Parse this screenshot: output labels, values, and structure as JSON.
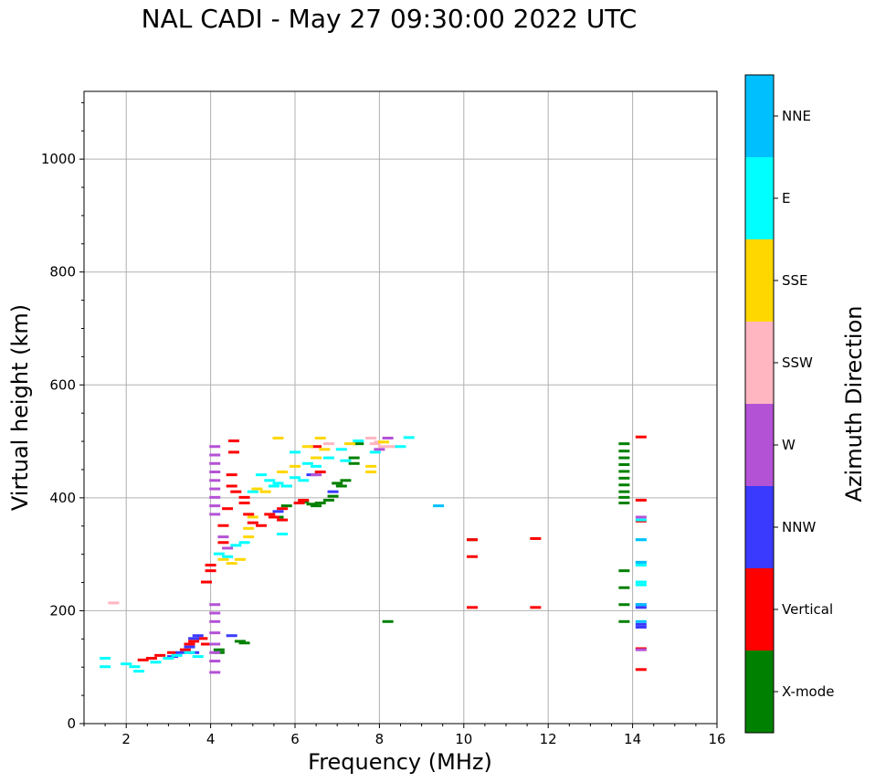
{
  "chart_data": {
    "type": "scatter",
    "title": "NAL CADI - May 27 09:30:00 2022 UTC",
    "xlabel": "Frequency (MHz)",
    "ylabel": "Virtual height (km)",
    "xlim": [
      1,
      16
    ],
    "ylim": [
      0,
      1120
    ],
    "xticks": [
      2,
      4,
      6,
      8,
      10,
      12,
      14,
      16
    ],
    "yticks": [
      0,
      200,
      400,
      600,
      800,
      1000
    ],
    "grid": true,
    "colorbar": {
      "label": "Azimuth Direction",
      "categories": [
        {
          "name": "X-mode",
          "color": "#008000"
        },
        {
          "name": "Vertical",
          "color": "#ff0000"
        },
        {
          "name": "NNW",
          "color": "#3a3aff"
        },
        {
          "name": "W",
          "color": "#b452d6"
        },
        {
          "name": "SSW",
          "color": "#ffb6c1"
        },
        {
          "name": "SSE",
          "color": "#ffd700"
        },
        {
          "name": "E",
          "color": "#00ffff"
        },
        {
          "name": "NNE",
          "color": "#00bfff"
        }
      ]
    },
    "series": [
      {
        "name": "X-mode",
        "points": [
          [
            4.2,
            130
          ],
          [
            4.2,
            125
          ],
          [
            4.7,
            145
          ],
          [
            4.8,
            142
          ],
          [
            5.6,
            365
          ],
          [
            5.8,
            385
          ],
          [
            6.2,
            392
          ],
          [
            6.4,
            388
          ],
          [
            6.5,
            385
          ],
          [
            6.6,
            390
          ],
          [
            6.8,
            395
          ],
          [
            7.0,
            425
          ],
          [
            7.2,
            430
          ],
          [
            7.4,
            470
          ],
          [
            7.4,
            460
          ],
          [
            7.5,
            495
          ],
          [
            7.1,
            420
          ],
          [
            6.9,
            402
          ],
          [
            8.2,
            180
          ],
          [
            10.2,
            325
          ],
          [
            13.8,
            495
          ],
          [
            13.8,
            482
          ],
          [
            13.8,
            470
          ],
          [
            13.8,
            458
          ],
          [
            13.8,
            446
          ],
          [
            13.8,
            434
          ],
          [
            13.8,
            422
          ],
          [
            13.8,
            410
          ],
          [
            13.8,
            400
          ],
          [
            13.8,
            390
          ],
          [
            13.8,
            270
          ],
          [
            13.8,
            240
          ],
          [
            13.8,
            210
          ],
          [
            13.8,
            180
          ]
        ]
      },
      {
        "name": "Vertical",
        "points": [
          [
            2.4,
            112
          ],
          [
            2.6,
            115
          ],
          [
            2.8,
            120
          ],
          [
            3.1,
            125
          ],
          [
            3.4,
            130
          ],
          [
            3.5,
            140
          ],
          [
            3.6,
            145
          ],
          [
            3.8,
            150
          ],
          [
            3.9,
            140
          ],
          [
            3.9,
            250
          ],
          [
            4.0,
            270
          ],
          [
            4.0,
            280
          ],
          [
            4.3,
            320
          ],
          [
            4.3,
            350
          ],
          [
            4.4,
            380
          ],
          [
            4.5,
            420
          ],
          [
            4.5,
            440
          ],
          [
            4.55,
            480
          ],
          [
            4.55,
            500
          ],
          [
            4.6,
            410
          ],
          [
            4.8,
            390
          ],
          [
            4.8,
            400
          ],
          [
            4.9,
            370
          ],
          [
            5.0,
            355
          ],
          [
            5.2,
            350
          ],
          [
            5.4,
            370
          ],
          [
            5.5,
            365
          ],
          [
            5.7,
            360
          ],
          [
            5.7,
            380
          ],
          [
            5.8,
            420
          ],
          [
            6.1,
            390
          ],
          [
            6.2,
            395
          ],
          [
            6.5,
            490
          ],
          [
            6.6,
            445
          ],
          [
            10.2,
            295
          ],
          [
            10.2,
            205
          ],
          [
            10.2,
            325
          ],
          [
            11.7,
            327
          ],
          [
            11.7,
            205
          ],
          [
            14.2,
            507
          ],
          [
            14.2,
            395
          ],
          [
            14.2,
            358
          ],
          [
            14.2,
            132
          ],
          [
            14.2,
            95
          ]
        ]
      },
      {
        "name": "NNW",
        "points": [
          [
            3.1,
            118
          ],
          [
            3.3,
            125
          ],
          [
            3.5,
            135
          ],
          [
            3.6,
            150
          ],
          [
            3.7,
            155
          ],
          [
            3.6,
            125
          ],
          [
            4.5,
            155
          ],
          [
            5.6,
            375
          ],
          [
            6.4,
            440
          ],
          [
            6.9,
            410
          ],
          [
            14.2,
            210
          ],
          [
            14.2,
            205
          ],
          [
            14.2,
            175
          ],
          [
            14.2,
            170
          ]
        ]
      },
      {
        "name": "W",
        "points": [
          [
            4.1,
            490
          ],
          [
            4.1,
            475
          ],
          [
            4.1,
            460
          ],
          [
            4.1,
            445
          ],
          [
            4.1,
            430
          ],
          [
            4.1,
            415
          ],
          [
            4.1,
            400
          ],
          [
            4.1,
            385
          ],
          [
            4.1,
            370
          ],
          [
            4.1,
            210
          ],
          [
            4.1,
            195
          ],
          [
            4.1,
            180
          ],
          [
            4.1,
            160
          ],
          [
            4.1,
            140
          ],
          [
            4.1,
            125
          ],
          [
            4.1,
            110
          ],
          [
            4.1,
            90
          ],
          [
            4.3,
            330
          ],
          [
            4.4,
            310
          ],
          [
            6.5,
            440
          ],
          [
            8.0,
            485
          ],
          [
            8.2,
            505
          ],
          [
            14.2,
            365
          ],
          [
            14.2,
            130
          ]
        ]
      },
      {
        "name": "SSW",
        "points": [
          [
            1.7,
            213
          ],
          [
            7.8,
            505
          ],
          [
            7.9,
            495
          ],
          [
            8.1,
            490
          ],
          [
            8.3,
            490
          ],
          [
            6.8,
            495
          ],
          [
            8.0,
            498
          ]
        ]
      },
      {
        "name": "SSE",
        "points": [
          [
            4.3,
            290
          ],
          [
            4.5,
            283
          ],
          [
            4.7,
            290
          ],
          [
            4.9,
            330
          ],
          [
            4.9,
            345
          ],
          [
            5.0,
            365
          ],
          [
            5.1,
            415
          ],
          [
            5.3,
            410
          ],
          [
            5.6,
            505
          ],
          [
            5.7,
            445
          ],
          [
            6.0,
            455
          ],
          [
            6.3,
            490
          ],
          [
            6.6,
            505
          ],
          [
            6.7,
            485
          ],
          [
            7.3,
            495
          ],
          [
            7.8,
            455
          ],
          [
            7.8,
            445
          ],
          [
            8.1,
            498
          ],
          [
            6.5,
            470
          ]
        ]
      },
      {
        "name": "E",
        "points": [
          [
            1.5,
            115
          ],
          [
            1.5,
            100
          ],
          [
            2.0,
            105
          ],
          [
            2.2,
            100
          ],
          [
            2.3,
            92
          ],
          [
            2.7,
            108
          ],
          [
            3.0,
            115
          ],
          [
            3.2,
            120
          ],
          [
            3.5,
            125
          ],
          [
            3.7,
            118
          ],
          [
            4.2,
            300
          ],
          [
            4.4,
            295
          ],
          [
            4.6,
            315
          ],
          [
            4.8,
            320
          ],
          [
            5.0,
            410
          ],
          [
            5.2,
            440
          ],
          [
            5.4,
            430
          ],
          [
            5.5,
            420
          ],
          [
            5.6,
            425
          ],
          [
            5.8,
            420
          ],
          [
            6.0,
            435
          ],
          [
            6.2,
            430
          ],
          [
            6.3,
            460
          ],
          [
            6.5,
            455
          ],
          [
            6.8,
            470
          ],
          [
            7.1,
            485
          ],
          [
            7.2,
            465
          ],
          [
            7.5,
            500
          ],
          [
            7.9,
            480
          ],
          [
            8.5,
            490
          ],
          [
            8.7,
            506
          ],
          [
            5.7,
            335
          ],
          [
            6.0,
            480
          ],
          [
            14.2,
            360
          ],
          [
            14.2,
            325
          ],
          [
            14.2,
            285
          ],
          [
            14.2,
            280
          ],
          [
            14.2,
            250
          ],
          [
            14.2,
            245
          ]
        ]
      },
      {
        "name": "NNE",
        "points": [
          [
            9.4,
            385
          ],
          [
            14.2,
            325
          ],
          [
            14.2,
            285
          ],
          [
            14.2,
            180
          ],
          [
            14.2,
            210
          ]
        ]
      }
    ]
  }
}
